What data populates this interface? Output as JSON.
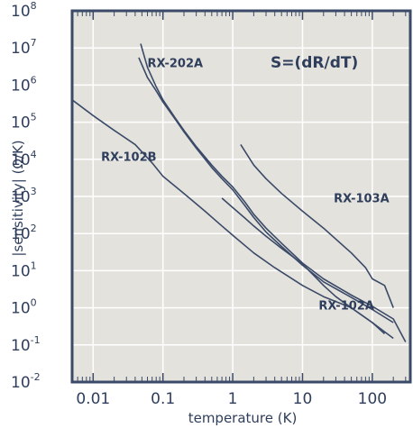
{
  "chart_data": {
    "type": "line",
    "title": "",
    "xlabel": "temperature (K)",
    "ylabel": "|sensitivity| (Ω/K)",
    "xscale": "log",
    "yscale": "log",
    "xlim": [
      0.005,
      350
    ],
    "ylim": [
      0.01,
      100000000
    ],
    "grid": true,
    "annotation": "S=(dR/dT)",
    "x_ticks": [
      {
        "value": 0.01,
        "label": "0.01"
      },
      {
        "value": 0.1,
        "label": "0.1"
      },
      {
        "value": 1,
        "label": "1"
      },
      {
        "value": 10,
        "label": "10"
      },
      {
        "value": 100,
        "label": "100"
      }
    ],
    "y_ticks": [
      {
        "value": 0.01,
        "base": "10",
        "exp": "-2"
      },
      {
        "value": 0.1,
        "base": "10",
        "exp": "-1"
      },
      {
        "value": 1,
        "base": "10",
        "exp": "0"
      },
      {
        "value": 10,
        "base": "10",
        "exp": "1"
      },
      {
        "value": 100,
        "base": "10",
        "exp": "2"
      },
      {
        "value": 1000,
        "base": "10",
        "exp": "3"
      },
      {
        "value": 10000,
        "base": "10",
        "exp": "4"
      },
      {
        "value": 100000,
        "base": "10",
        "exp": "5"
      },
      {
        "value": 1000000,
        "base": "10",
        "exp": "6"
      },
      {
        "value": 10000000,
        "base": "10",
        "exp": "7"
      },
      {
        "value": 100000000,
        "base": "10",
        "exp": "8"
      }
    ],
    "series": [
      {
        "name": "RX-202A",
        "label_at": [
          0.06,
          3000000
        ],
        "lines": [
          {
            "x": [
              0.048,
              0.06,
              0.08,
              0.1,
              0.15,
              0.2,
              0.3,
              0.5,
              0.7,
              1,
              1.5,
              2,
              3,
              5,
              10,
              20,
              50,
              100,
              200,
              300
            ],
            "y": [
              13000000,
              3000000,
              900000,
              400000,
              130000,
              60000,
              22000,
              7000,
              3500,
              1800,
              700,
              330,
              140,
              55,
              16,
              6,
              2.2,
              1.1,
              0.5,
              0.12
            ]
          },
          {
            "x": [
              0.045,
              0.06,
              0.08,
              0.1,
              0.15,
              0.2,
              0.3,
              0.5,
              0.7,
              1,
              1.5,
              2,
              3,
              5,
              10,
              20,
              50,
              100,
              200
            ],
            "y": [
              5500000,
              1600000,
              700000,
              350000,
              120000,
              55000,
              20000,
              6000,
              3000,
              1500,
              560,
              270,
              110,
              45,
              14,
              5,
              1.9,
              0.9,
              0.4
            ]
          }
        ]
      },
      {
        "name": "RX-102B",
        "label_at": [
          0.013,
          9000
        ],
        "lines": [
          {
            "x": [
              0.005,
              0.01,
              0.02,
              0.04,
              0.07,
              0.1,
              0.2,
              0.4,
              0.7,
              1,
              2,
              4,
              10,
              20,
              50,
              100,
              200
            ],
            "y": [
              400000,
              150000,
              60000,
              25000,
              8000,
              3500,
              1200,
              400,
              160,
              90,
              30,
              12,
              4,
              2,
              1,
              0.4,
              0.15
            ]
          }
        ]
      },
      {
        "name": "RX-103A",
        "label_at": [
          28,
          700
        ],
        "lines": [
          {
            "x": [
              1.3,
              2,
              3,
              5,
              10,
              20,
              50,
              80,
              100,
              150,
              200
            ],
            "y": [
              25000,
              7000,
              3000,
              1200,
              400,
              140,
              30,
              12,
              6,
              4,
              1
            ]
          }
        ]
      },
      {
        "name": "RX-102A",
        "label_at": [
          17,
          0.9
        ],
        "lines": [
          {
            "x": [
              0.7,
              1,
              1.5,
              2,
              3,
              5,
              7,
              10,
              15,
              20,
              30,
              50,
              100,
              150
            ],
            "y": [
              900,
              500,
              260,
              160,
              85,
              40,
              25,
              15,
              7,
              4,
              2,
              1,
              0.4,
              0.2
            ]
          }
        ]
      }
    ]
  }
}
